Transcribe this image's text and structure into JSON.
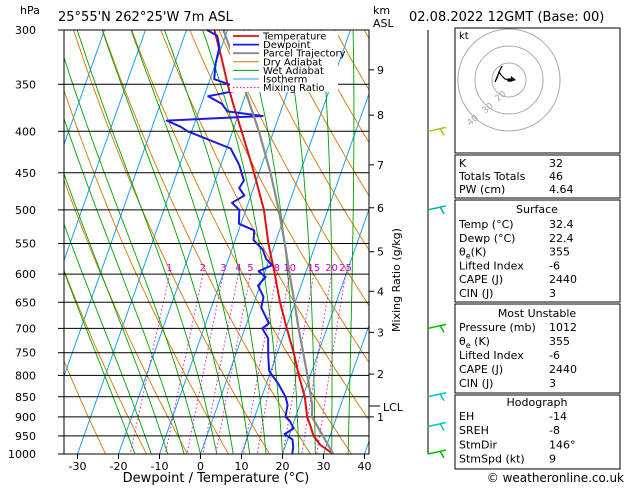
{
  "header": {
    "location": "25°55'N  262°25'W  7m  ASL",
    "datetime": "02.08.2022  12GMT  (Base: 00)"
  },
  "skewt": {
    "pressure_unit": "hPa",
    "height_unit_top": "km",
    "height_unit_bottom": "ASL",
    "xlabel": "Dewpoint / Temperature (°C)",
    "mixing_ratio_label": "Mixing Ratio (g/kg)",
    "lcl_label": "LCL",
    "pressure_levels": [
      300,
      350,
      400,
      450,
      500,
      550,
      600,
      650,
      700,
      750,
      800,
      850,
      900,
      950,
      1000
    ],
    "temp_ticks": [
      -30,
      -20,
      -10,
      0,
      10,
      20,
      30,
      40
    ],
    "height_ticks": [
      {
        "label": "9",
        "p": 336
      },
      {
        "label": "8",
        "p": 382
      },
      {
        "label": "7",
        "p": 440
      },
      {
        "label": "6",
        "p": 497
      },
      {
        "label": "5",
        "p": 563
      },
      {
        "label": "4",
        "p": 630
      },
      {
        "label": "3",
        "p": 708
      },
      {
        "label": "2",
        "p": 797
      },
      {
        "label": "1",
        "p": 900
      }
    ],
    "mixing_ratio_values": [
      "1",
      "2",
      "3",
      "4",
      "5",
      "8",
      "10",
      "15",
      "20",
      "25"
    ],
    "legend": [
      {
        "label": "Temperature",
        "color": "#e11010"
      },
      {
        "label": "Dewpoint",
        "color": "#1a1ae0"
      },
      {
        "label": "Parcel Trajectory",
        "color": "#8a8a8a"
      },
      {
        "label": "Dry Adiabat",
        "color": "#d07800"
      },
      {
        "label": "Wet Adiabat",
        "color": "#00a000"
      },
      {
        "label": "Isotherm",
        "color": "#1aa0e6"
      },
      {
        "label": "Mixing Ratio",
        "color": "#d000d0"
      }
    ]
  },
  "chart_data": {
    "type": "line",
    "x_range_celsius": [
      -40,
      40
    ],
    "y_range_hpa": [
      300,
      1000
    ],
    "y_scale": "log",
    "series": [
      {
        "name": "Temperature",
        "color": "#e11010",
        "points": [
          [
            1000,
            32.4
          ],
          [
            975,
            28.5
          ],
          [
            950,
            26
          ],
          [
            925,
            24.5
          ],
          [
            900,
            22.8
          ],
          [
            850,
            20.5
          ],
          [
            800,
            17.2
          ],
          [
            750,
            14
          ],
          [
            700,
            10.2
          ],
          [
            650,
            6.3
          ],
          [
            600,
            2.6
          ],
          [
            550,
            -1.6
          ],
          [
            500,
            -5.6
          ],
          [
            450,
            -11.2
          ],
          [
            400,
            -17.8
          ],
          [
            375,
            -21.5
          ],
          [
            350,
            -25.3
          ],
          [
            325,
            -29
          ],
          [
            300,
            -33.2
          ]
        ]
      },
      {
        "name": "Dewpoint",
        "color": "#1a1ae0",
        "points": [
          [
            1000,
            22.4
          ],
          [
            980,
            22
          ],
          [
            960,
            21.2
          ],
          [
            945,
            18.8
          ],
          [
            930,
            20.5
          ],
          [
            910,
            18.9
          ],
          [
            900,
            17.5
          ],
          [
            870,
            17
          ],
          [
            850,
            15.8
          ],
          [
            820,
            13
          ],
          [
            790,
            9.6
          ],
          [
            760,
            8.2
          ],
          [
            720,
            6.5
          ],
          [
            700,
            4.2
          ],
          [
            690,
            5.4
          ],
          [
            660,
            2.2
          ],
          [
            640,
            1.8
          ],
          [
            620,
            -0.5
          ],
          [
            605,
            0.6
          ],
          [
            595,
            -1.6
          ],
          [
            585,
            1.2
          ],
          [
            575,
            -0.8
          ],
          [
            560,
            -2.4
          ],
          [
            545,
            -5.5
          ],
          [
            530,
            -6.2
          ],
          [
            520,
            -10.5
          ],
          [
            500,
            -11.6
          ],
          [
            490,
            -14
          ],
          [
            480,
            -11.6
          ],
          [
            470,
            -13.5
          ],
          [
            460,
            -13
          ],
          [
            440,
            -15.5
          ],
          [
            420,
            -19
          ],
          [
            400,
            -31
          ],
          [
            395,
            -33
          ],
          [
            388,
            -37
          ],
          [
            383,
            -14
          ],
          [
            378,
            -23
          ],
          [
            370,
            -25
          ],
          [
            362,
            -29
          ],
          [
            355,
            -21
          ],
          [
            345,
            -29
          ],
          [
            330,
            -30
          ],
          [
            315,
            -30.5
          ],
          [
            305,
            -32
          ],
          [
            300,
            -35
          ]
        ]
      },
      {
        "name": "Parcel Trajectory",
        "color": "#8a8a8a",
        "points": [
          [
            1000,
            32.4
          ],
          [
            900,
            24
          ],
          [
            870,
            23
          ],
          [
            850,
            22
          ],
          [
            800,
            19.3
          ],
          [
            750,
            16.3
          ],
          [
            700,
            13.1
          ],
          [
            650,
            9.8
          ],
          [
            600,
            6.2
          ],
          [
            550,
            2.4
          ],
          [
            500,
            -2
          ],
          [
            450,
            -7.2
          ],
          [
            400,
            -13.6
          ],
          [
            350,
            -21.5
          ],
          [
            300,
            -31
          ]
        ]
      }
    ],
    "wind_barbs": [
      {
        "p": 400,
        "color": "#a0c800"
      },
      {
        "p": 500,
        "color": "#00b0a0"
      },
      {
        "p": 700,
        "color": "#00c000"
      },
      {
        "p": 850,
        "color": "#00c8c8"
      },
      {
        "p": 925,
        "color": "#00c8c8"
      },
      {
        "p": 1000,
        "color": "#00c000"
      }
    ]
  },
  "hodograph": {
    "label": "kt",
    "ring_labels": [
      "20",
      "30",
      "40"
    ]
  },
  "indices": {
    "rows": [
      {
        "label": "K",
        "value": "32"
      },
      {
        "label": "Totals Totals",
        "value": "46"
      },
      {
        "label": "PW (cm)",
        "value": "4.64"
      }
    ]
  },
  "surface": {
    "title": "Surface",
    "rows": [
      {
        "label": "Temp (°C)",
        "value": "32.4"
      },
      {
        "label": "Dewp (°C)",
        "value": "22.4"
      },
      {
        "label": "θ",
        "sub": "e",
        "label2": "(K)",
        "value": "355"
      },
      {
        "label": "Lifted Index",
        "value": "-6"
      },
      {
        "label": "CAPE (J)",
        "value": "2440"
      },
      {
        "label": "CIN (J)",
        "value": "3"
      }
    ]
  },
  "most_unstable": {
    "title": "Most Unstable",
    "rows": [
      {
        "label": "Pressure (mb)",
        "value": "1012"
      },
      {
        "label": "θ",
        "sub": "e",
        "label2": " (K)",
        "value": "355"
      },
      {
        "label": "Lifted Index",
        "value": "-6"
      },
      {
        "label": "CAPE (J)",
        "value": "2440"
      },
      {
        "label": "CIN (J)",
        "value": "3"
      }
    ]
  },
  "hodograph_table": {
    "title": "Hodograph",
    "rows": [
      {
        "label": "EH",
        "value": "-14"
      },
      {
        "label": "SREH",
        "value": "-8"
      },
      {
        "label": "StmDir",
        "value": "146°"
      },
      {
        "label": "StmSpd (kt)",
        "value": "9"
      }
    ]
  },
  "footer": {
    "copyright": "© weatheronline.co.uk"
  }
}
